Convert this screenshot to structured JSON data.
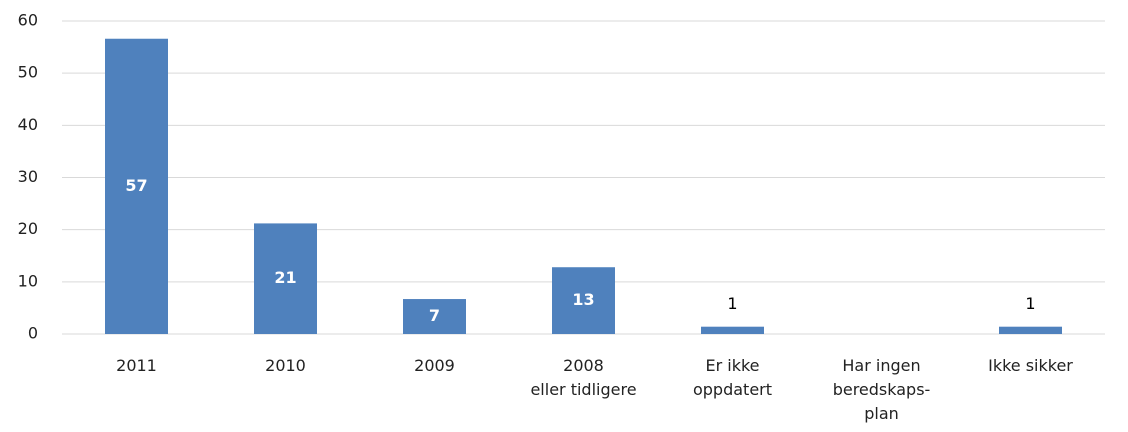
{
  "chart_data": {
    "type": "bar",
    "categories": [
      [
        "2011"
      ],
      [
        "2010"
      ],
      [
        "2009"
      ],
      [
        "2008",
        "eller tidligere"
      ],
      [
        "Er ikke",
        "oppdatert"
      ],
      [
        "Har ingen",
        "beredskaps-",
        "plan"
      ],
      [
        "Ikke sikker"
      ]
    ],
    "values": [
      56.6,
      21.2,
      6.7,
      12.8,
      1.4,
      0,
      1.4
    ],
    "value_labels": [
      "57",
      "21",
      "7",
      "13",
      "1",
      null,
      "1"
    ],
    "color": "#4f81bd",
    "ylim": [
      0,
      60
    ],
    "yticks": [
      0,
      10,
      20,
      30,
      40,
      50,
      60
    ],
    "grid": true
  }
}
